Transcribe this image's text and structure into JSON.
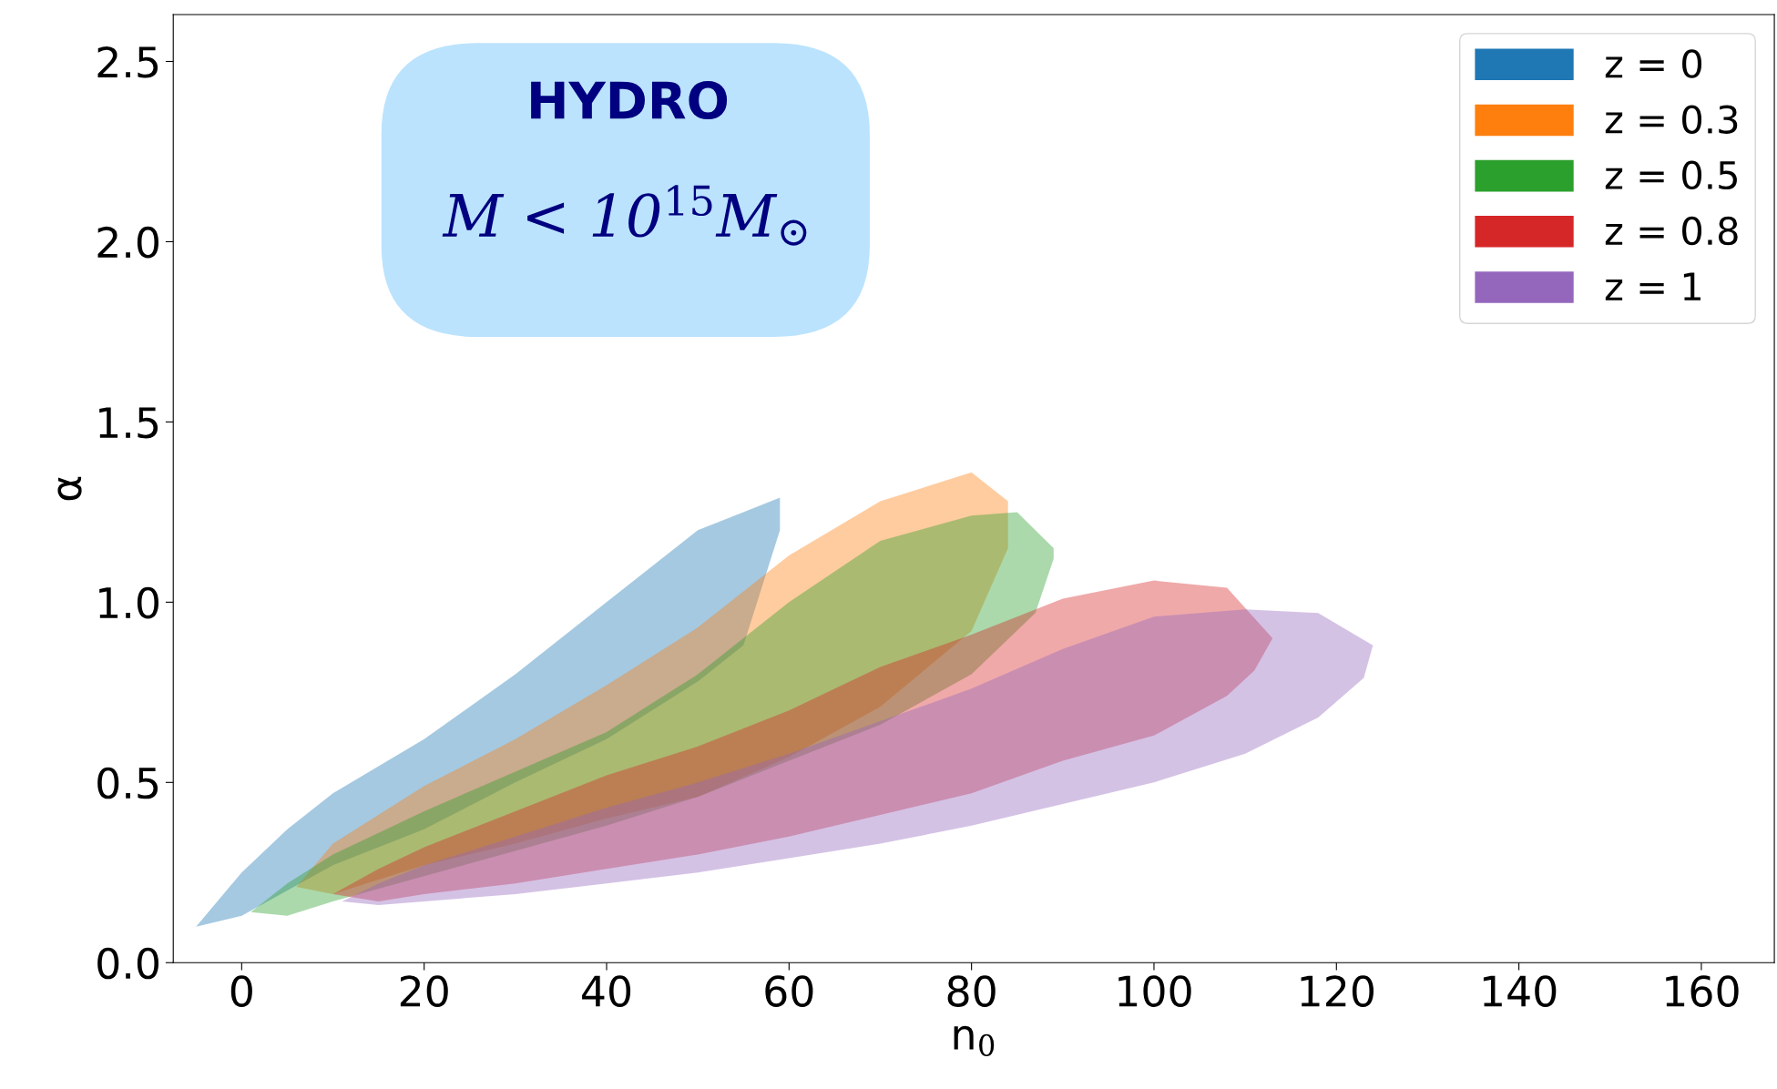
{
  "chart_data": {
    "type": "area",
    "xlabel": "n$_{0}$",
    "ylabel": "α",
    "xlim": [
      -7.5,
      168
    ],
    "ylim": [
      0,
      2.63
    ],
    "xticks": [
      0,
      20,
      40,
      60,
      80,
      100,
      120,
      140,
      160
    ],
    "yticks": [
      {
        "value": 0,
        "label": "0.0"
      },
      {
        "value": 0.5,
        "label": "0.5"
      },
      {
        "value": 1,
        "label": "1.0"
      },
      {
        "value": 1.5,
        "label": "1.5"
      },
      {
        "value": 2,
        "label": "2.0"
      },
      {
        "value": 2.5,
        "label": "2.5"
      }
    ],
    "legend": "top right",
    "annotations": [
      "HYDRO",
      "M < 10$^{15}$M$_{⊙}$"
    ],
    "series": [
      {
        "name": "z = 0",
        "color": "#1f77b4",
        "x": [
          -5,
          0,
          5,
          10,
          20,
          30,
          40,
          50,
          55,
          59,
          59,
          55,
          50,
          40,
          30,
          20,
          10,
          5,
          0
        ],
        "values": [
          0.1,
          0.25,
          0.37,
          0.47,
          0.62,
          0.8,
          1.0,
          1.2,
          1.25,
          1.29,
          1.2,
          0.88,
          0.78,
          0.62,
          0.5,
          0.37,
          0.27,
          0.2,
          0.13
        ]
      },
      {
        "name": "z = 0.3",
        "color": "#ff7f0e",
        "x": [
          6,
          10,
          20,
          30,
          40,
          50,
          60,
          70,
          80,
          84,
          84,
          80,
          70,
          60,
          50,
          40,
          30,
          20,
          10
        ],
        "values": [
          0.21,
          0.33,
          0.49,
          0.62,
          0.77,
          0.93,
          1.13,
          1.28,
          1.36,
          1.28,
          1.15,
          0.92,
          0.71,
          0.57,
          0.46,
          0.4,
          0.33,
          0.27,
          0.19
        ]
      },
      {
        "name": "z = 0.5",
        "color": "#2ca02c",
        "x": [
          1,
          5,
          10,
          20,
          30,
          40,
          50,
          60,
          70,
          80,
          85,
          89,
          89,
          87,
          80,
          70,
          60,
          50,
          40,
          30,
          20,
          10,
          5
        ],
        "values": [
          0.14,
          0.22,
          0.3,
          0.42,
          0.53,
          0.64,
          0.8,
          1.0,
          1.17,
          1.24,
          1.25,
          1.15,
          1.12,
          0.97,
          0.8,
          0.66,
          0.56,
          0.46,
          0.38,
          0.31,
          0.24,
          0.17,
          0.13
        ]
      },
      {
        "name": "z = 0.8",
        "color": "#d62728",
        "x": [
          10,
          15,
          20,
          30,
          40,
          50,
          60,
          70,
          80,
          90,
          100,
          108,
          113,
          111,
          108,
          100,
          90,
          80,
          70,
          60,
          50,
          40,
          30,
          20,
          15
        ],
        "values": [
          0.19,
          0.26,
          0.32,
          0.42,
          0.52,
          0.6,
          0.7,
          0.82,
          0.91,
          1.01,
          1.06,
          1.04,
          0.9,
          0.81,
          0.74,
          0.63,
          0.56,
          0.47,
          0.41,
          0.35,
          0.3,
          0.26,
          0.22,
          0.19,
          0.17
        ]
      },
      {
        "name": "z = 1",
        "color": "#9467bd",
        "x": [
          11,
          15,
          20,
          30,
          40,
          50,
          60,
          70,
          80,
          90,
          100,
          110,
          118,
          124,
          123,
          118,
          110,
          100,
          90,
          80,
          70,
          60,
          50,
          40,
          30,
          20,
          15
        ],
        "values": [
          0.17,
          0.22,
          0.27,
          0.35,
          0.43,
          0.5,
          0.58,
          0.67,
          0.76,
          0.87,
          0.96,
          0.98,
          0.97,
          0.88,
          0.79,
          0.68,
          0.58,
          0.5,
          0.44,
          0.38,
          0.33,
          0.29,
          0.25,
          0.22,
          0.19,
          0.17,
          0.16
        ]
      }
    ]
  }
}
